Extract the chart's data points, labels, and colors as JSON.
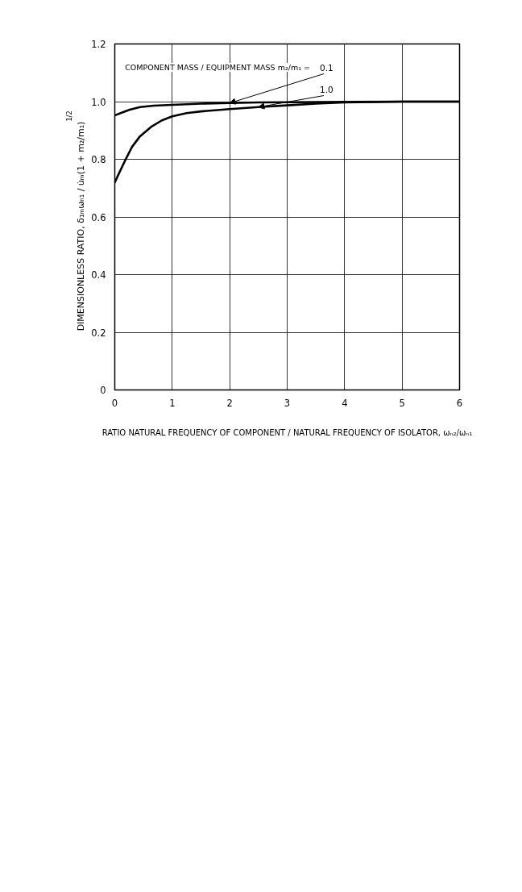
{
  "chart_data": {
    "type": "line",
    "xlabel": "RATIO NATURAL FREQUENCY OF COMPONENT / NATURAL FREQUENCY OF ISOLATOR, ωₙ₂/ωₙ₁",
    "ylabel": "DIMENSIONLESS RATIO, δ₁ₘωₙ₁ / u̇ₘ(1 + m₂/m₁)$^{1/2}$",
    "annotations": [
      "COMPONENT MASS / EQUIPMENT MASS   m₂/m₁ ="
    ],
    "xlim": [
      0,
      6
    ],
    "ylim": [
      0,
      1.2
    ],
    "xticks": [
      0,
      1,
      2,
      3,
      4,
      5,
      6
    ],
    "yticks": [
      0,
      0.2,
      0.4,
      0.6,
      0.8,
      {
        "value": 1,
        "label": "1.0"
      },
      1.2
    ],
    "grid": true,
    "line_style": "solid",
    "series": [
      {
        "name": "0.1",
        "color": "#000000",
        "x": [
          0,
          0.1,
          0.26,
          0.44,
          0.68,
          1,
          1.5,
          2,
          2.5,
          3,
          4,
          5,
          6
        ],
        "values": [
          0.952,
          0.96,
          0.972,
          0.981,
          0.986,
          0.989,
          0.993,
          0.995,
          0.997,
          0.998,
          0.999,
          1.0,
          1.0
        ]
      },
      {
        "name": "1.0",
        "color": "#000000",
        "x": [
          0,
          0.07,
          0.19,
          0.3,
          0.44,
          0.63,
          0.82,
          1,
          1.25,
          1.5,
          2,
          2.5,
          3,
          3.5,
          4,
          5,
          6
        ],
        "values": [
          0.72,
          0.75,
          0.8,
          0.843,
          0.88,
          0.912,
          0.935,
          0.949,
          0.96,
          0.966,
          0.974,
          0.981,
          0.987,
          0.993,
          0.997,
          1.0,
          1.0
        ]
      }
    ]
  }
}
